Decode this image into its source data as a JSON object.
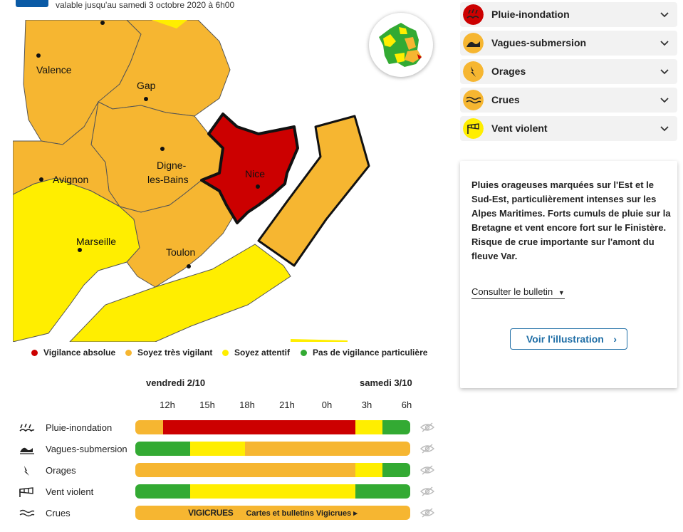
{
  "header": {
    "validity": "valable jusqu'au samedi 3 octobre 2020 à 6h00"
  },
  "map": {
    "cities": [
      {
        "name": "Valence"
      },
      {
        "name": "Gap"
      },
      {
        "name": "Digne-"
      },
      {
        "name": "les-Bains"
      },
      {
        "name": "Avignon"
      },
      {
        "name": "Nice"
      },
      {
        "name": "Marseille"
      },
      {
        "name": "Toulon"
      }
    ]
  },
  "legend": {
    "items": [
      {
        "label": "Vigilance absolue",
        "color": "#cc0000"
      },
      {
        "label": "Soyez très vigilant",
        "color": "#f6b631"
      },
      {
        "label": "Soyez attentif",
        "color": "#ffee00"
      },
      {
        "label": "Pas de vigilance particulière",
        "color": "#33aa33"
      }
    ]
  },
  "timeline": {
    "days": [
      "vendredi 2/10",
      "samedi 3/10"
    ],
    "hours": [
      "12h",
      "15h",
      "18h",
      "21h",
      "0h",
      "3h",
      "6h"
    ],
    "rows": [
      {
        "label": "Pluie-inondation",
        "icon": "rain-flood-icon",
        "segments": [
          {
            "color": "#f6b631",
            "share": 0.1
          },
          {
            "color": "#cc0000",
            "share": 0.7
          },
          {
            "color": "#ffee00",
            "share": 0.1
          },
          {
            "color": "#33aa33",
            "share": 0.1
          }
        ]
      },
      {
        "label": "Vagues-submersion",
        "icon": "waves-icon",
        "segments": [
          {
            "color": "#33aa33",
            "share": 0.2
          },
          {
            "color": "#ffee00",
            "share": 0.2
          },
          {
            "color": "#f6b631",
            "share": 0.6
          }
        ]
      },
      {
        "label": "Orages",
        "icon": "lightning-icon",
        "segments": [
          {
            "color": "#f6b631",
            "share": 0.8
          },
          {
            "color": "#ffee00",
            "share": 0.1
          },
          {
            "color": "#33aa33",
            "share": 0.1
          }
        ]
      },
      {
        "label": "Vent violent",
        "icon": "wind-icon",
        "segments": [
          {
            "color": "#33aa33",
            "share": 0.2
          },
          {
            "color": "#ffee00",
            "share": 0.6
          },
          {
            "color": "#33aa33",
            "share": 0.2
          }
        ]
      },
      {
        "label": "Crues",
        "icon": "flood-icon",
        "segments": [
          {
            "color": "#f6b631",
            "share": 1.0
          }
        ]
      }
    ],
    "vigicrues_logo": "VIGICRUES",
    "vigicrues_link": "Cartes et bulletins Vigicrues ▸"
  },
  "risks": [
    {
      "label": "Pluie-inondation",
      "icon": "rain-flood-icon",
      "color": "#cc0000"
    },
    {
      "label": "Vagues-submersion",
      "icon": "waves-icon",
      "color": "#f6b631"
    },
    {
      "label": "Orages",
      "icon": "lightning-icon",
      "color": "#f6b631"
    },
    {
      "label": "Crues",
      "icon": "flood-icon",
      "color": "#f6b631"
    },
    {
      "label": "Vent violent",
      "icon": "wind-icon",
      "color": "#ffee00"
    }
  ],
  "card": {
    "text": "Pluies orageuses marquées sur l'Est et le Sud-Est, particulièrement intenses sur les Alpes Maritimes. Forts cumuls de pluie sur la Bretagne et vent encore fort sur le Finistère. Risque de crue importante sur l'amont du fleuve Var.",
    "bulletin_link": "Consulter le bulletin",
    "illustration_button": "Voir l'illustration"
  }
}
